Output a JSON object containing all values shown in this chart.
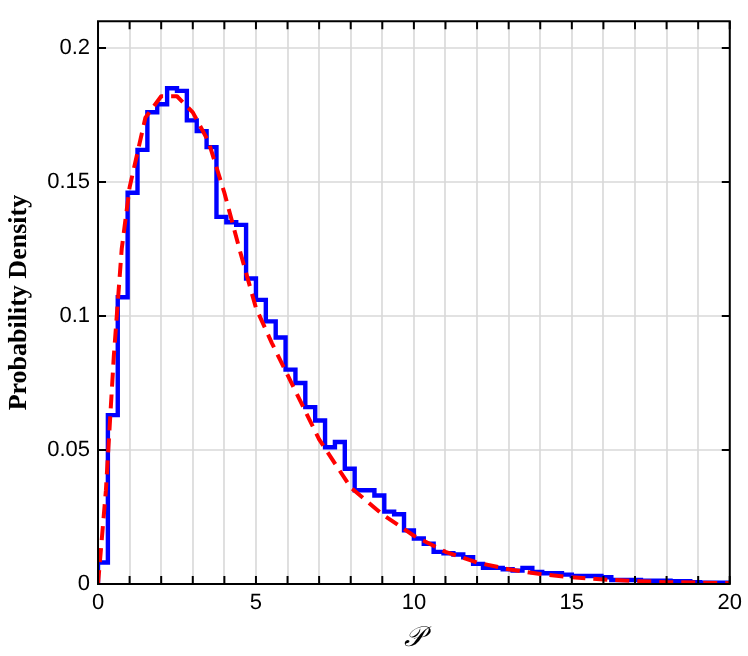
{
  "chart_data": {
    "type": "histogram",
    "xlabel": "𝒫",
    "ylabel": "Probability Density",
    "xlim": [
      0,
      20
    ],
    "ylim": [
      0,
      0.21
    ],
    "xticks": [
      0,
      {
        "value": 1,
        "label": null
      },
      {
        "value": 2,
        "label": null
      },
      {
        "value": 3,
        "label": null
      },
      {
        "value": 4,
        "label": null
      },
      5,
      {
        "value": 6,
        "label": null
      },
      {
        "value": 7,
        "label": null
      },
      {
        "value": 8,
        "label": null
      },
      {
        "value": 9,
        "label": null
      },
      10,
      {
        "value": 11,
        "label": null
      },
      {
        "value": 12,
        "label": null
      },
      {
        "value": 13,
        "label": null
      },
      {
        "value": 14,
        "label": null
      },
      15,
      {
        "value": 16,
        "label": null
      },
      {
        "value": 17,
        "label": null
      },
      {
        "value": 18,
        "label": null
      },
      {
        "value": 19,
        "label": null
      },
      20
    ],
    "yticks": [
      0,
      0.05,
      0.1,
      0.15,
      0.2
    ],
    "grid": true,
    "legend": false,
    "series": [
      {
        "color": "#0000ff",
        "bins": [
          0,
          0.3125,
          0.625,
          0.9375,
          1.25,
          1.5625,
          1.875,
          2.1875,
          2.5,
          2.8125,
          3.125,
          3.4375,
          3.75,
          4.0625,
          4.375,
          4.6875,
          5,
          5.3125,
          5.625,
          5.9375,
          6.25,
          6.5625,
          6.875,
          7.1875,
          7.5,
          7.8125,
          8.125,
          8.4375,
          8.75,
          9.0625,
          9.375,
          9.6875,
          10,
          10.3125,
          10.625,
          10.9375,
          11.25,
          11.5625,
          11.875,
          12.1875,
          12.5,
          12.8125,
          13.125,
          13.4375,
          13.75,
          14.0625,
          14.375,
          14.6875,
          15,
          15.3125,
          15.625,
          15.9375,
          16.25,
          16.5625,
          16.875,
          17.1875,
          17.5,
          17.8125,
          18.125,
          18.4375,
          18.75,
          19.0625,
          19.375,
          19.6875,
          20
        ],
        "values": [
          0.008,
          0.063,
          0.107,
          0.146,
          0.162,
          0.176,
          0.179,
          0.185,
          0.184,
          0.173,
          0.169,
          0.163,
          0.137,
          0.135,
          0.134,
          0.114,
          0.106,
          0.098,
          0.092,
          0.08,
          0.075,
          0.066,
          0.061,
          0.051,
          0.053,
          0.043,
          0.035,
          0.035,
          0.033,
          0.027,
          0.026,
          0.02,
          0.017,
          0.015,
          0.012,
          0.0115,
          0.011,
          0.01,
          0.0075,
          0.006,
          0.006,
          0.0055,
          0.005,
          0.006,
          0.0045,
          0.004,
          0.004,
          0.0035,
          0.003,
          0.003,
          0.003,
          0.0025,
          0.0015,
          0.0015,
          0.0015,
          0.0012,
          0.0012,
          0.0012,
          0.001,
          0.001,
          0.0007,
          0.0005,
          0.0005,
          0.0005
        ]
      },
      {
        "type": "line",
        "color": "#ff0000",
        "line_style": "dashed",
        "marker": "none",
        "x": [
          0,
          0.25,
          0.5,
          0.75,
          1,
          1.5,
          2,
          2.5,
          3,
          3.5,
          4,
          4.5,
          5,
          5.5,
          6,
          7,
          8,
          9,
          10,
          11,
          12,
          13,
          14,
          15,
          16,
          17,
          18,
          19,
          20
        ],
        "values": [
          0,
          0.035,
          0.085,
          0.125,
          0.148,
          0.174,
          0.182,
          0.182,
          0.176,
          0.165,
          0.146,
          0.124,
          0.103,
          0.09,
          0.078,
          0.054,
          0.036,
          0.026,
          0.018,
          0.012,
          0.008,
          0.0055,
          0.0037,
          0.0025,
          0.0017,
          0.0011,
          0.0007,
          0.0005,
          0.0003
        ]
      }
    ]
  }
}
